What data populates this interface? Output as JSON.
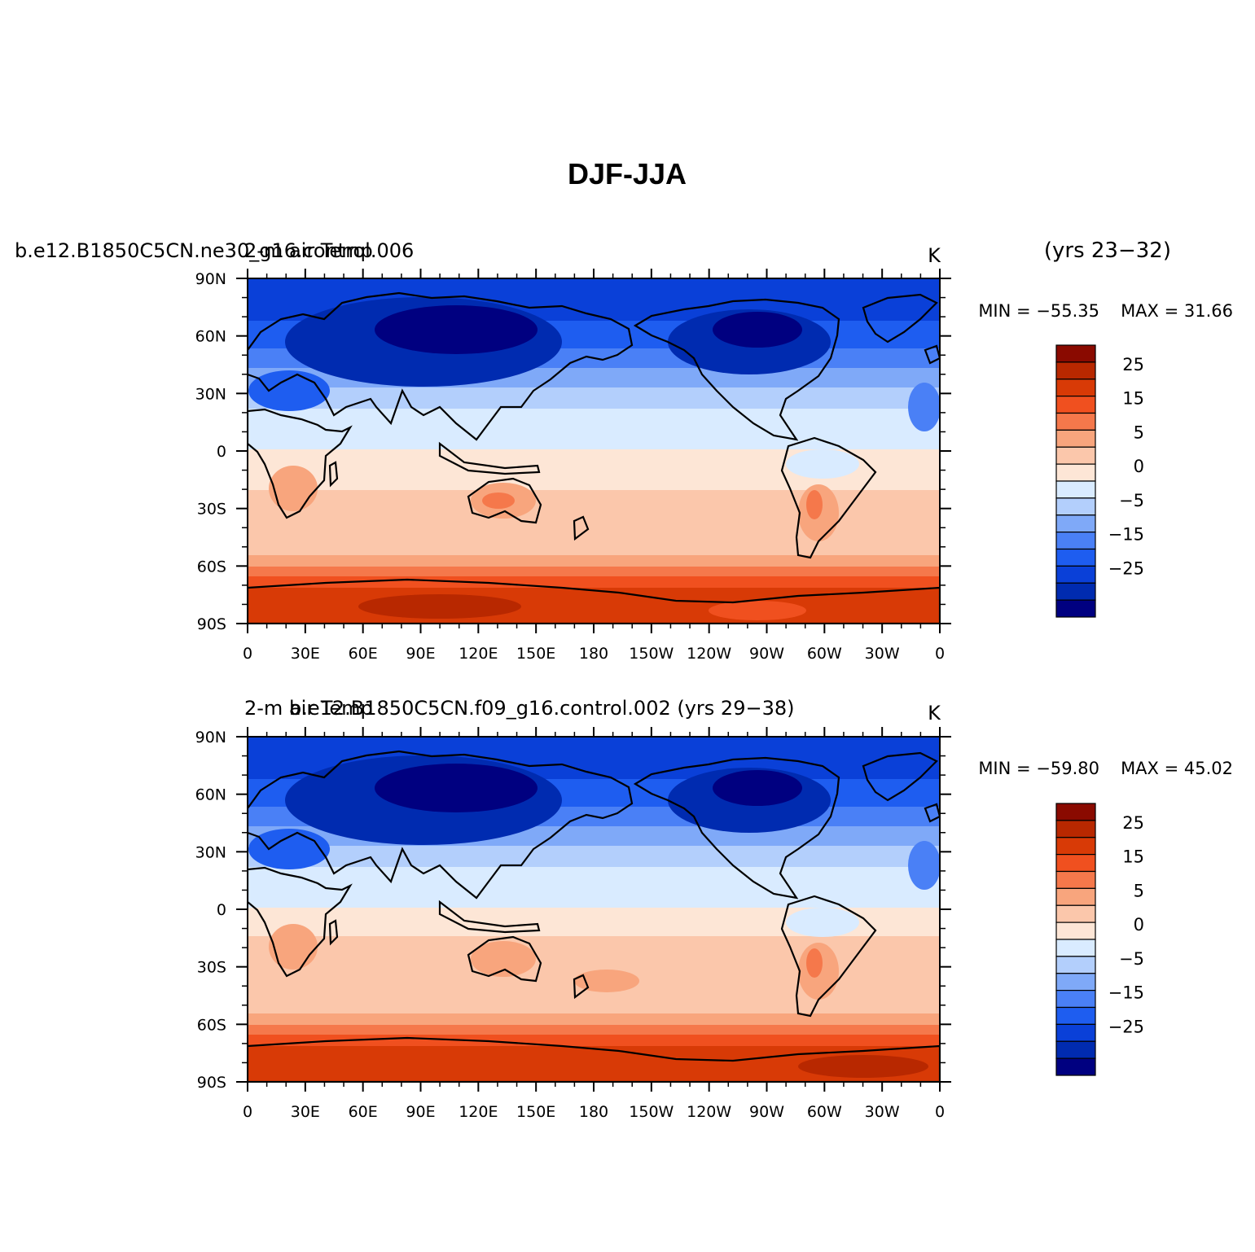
{
  "title": "DJF-JJA",
  "palette": [
    "#000080",
    "#002bb0",
    "#0a40d8",
    "#1e5df0",
    "#4a80f6",
    "#7fa9f8",
    "#b3cffc",
    "#d9ebff",
    "#fde6d6",
    "#fbc7ab",
    "#f8a57d",
    "#f5784b",
    "#f0501f",
    "#d83a06",
    "#b82800",
    "#8a0a00"
  ],
  "colorbar_labels": [
    "25",
    "15",
    "5",
    "0",
    "−5",
    "−15",
    "−25"
  ],
  "x_ticks": [
    "0",
    "30E",
    "60E",
    "90E",
    "120E",
    "150E",
    "180",
    "150W",
    "120W",
    "90W",
    "60W",
    "30W",
    "0"
  ],
  "y_ticks": [
    "90N",
    "60N",
    "30N",
    "0",
    "30S",
    "60S",
    "90S"
  ],
  "panels": [
    {
      "left_title": "b.e12.B1850C5CN.ne30_g16.control.006",
      "center_title": "2-m air Temp",
      "right_title": "(yrs 23−32)",
      "units": "K",
      "min_label": "MIN = −55.35",
      "max_label": "MAX =  31.66"
    },
    {
      "left_title": "b.e12.B1850C5CN.f09_g16.control.002 (yrs 29−38)",
      "center_title": "2-m air Temp",
      "right_title": "",
      "units": "K",
      "min_label": "MIN = −59.80",
      "max_label": "MAX =  45.02"
    }
  ]
}
